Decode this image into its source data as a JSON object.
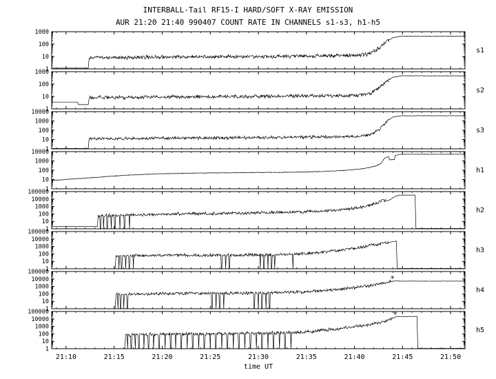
{
  "page": {
    "background": "#ffffff",
    "ink": "#000000"
  },
  "chart_data": {
    "type": "line",
    "title": "INTERBALL-Tail RF15-I HARD/SOFT X-RAY EMISSION",
    "subtitle": "AUR 21:20 21:40 990407  COUNT RATE IN CHANNELS s1-s3, h1-h5",
    "xlabel": "time UT",
    "x_range": [
      8.5,
      51.5
    ],
    "x_major_ticks": [
      10,
      15,
      20,
      25,
      30,
      35,
      40,
      45,
      50
    ],
    "x_tick_labels": [
      "21:10",
      "21:15",
      "21:20",
      "21:25",
      "21:30",
      "21:35",
      "21:40",
      "21:45",
      "21:50"
    ],
    "x_minor_step": 1,
    "grid": false,
    "legend": "none",
    "line_color": "#000000",
    "panels": [
      {
        "label": "s1",
        "ylim": [
          1,
          1000
        ],
        "y_tick_labels": [
          "1000",
          "100",
          "10",
          "1"
        ],
        "noise_dex": 0.18,
        "noise_start": 12.4,
        "noise_end": 43.6,
        "seed": 11,
        "keypoints": [
          [
            8.5,
            1.15
          ],
          [
            12.3,
            1.15
          ],
          [
            12.4,
            8
          ],
          [
            20,
            9
          ],
          [
            30,
            10
          ],
          [
            40,
            12
          ],
          [
            41.5,
            16
          ],
          [
            42.5,
            45
          ],
          [
            43.3,
            160
          ],
          [
            44.0,
            330
          ],
          [
            44.8,
            430
          ],
          [
            51.5,
            430
          ]
        ],
        "dropouts": []
      },
      {
        "label": "s2",
        "ylim": [
          1,
          1000
        ],
        "y_tick_labels": [
          "1000",
          "100",
          "10",
          "1"
        ],
        "noise_dex": 0.18,
        "noise_start": 12.4,
        "noise_end": 43.6,
        "seed": 22,
        "keypoints": [
          [
            8.5,
            3.5
          ],
          [
            11.2,
            3.5
          ],
          [
            11.3,
            2.2
          ],
          [
            12.3,
            2.2
          ],
          [
            12.4,
            8
          ],
          [
            20,
            9
          ],
          [
            30,
            10
          ],
          [
            40,
            12
          ],
          [
            41.5,
            16
          ],
          [
            42.5,
            45
          ],
          [
            43.3,
            160
          ],
          [
            44.0,
            350
          ],
          [
            44.8,
            460
          ],
          [
            51.5,
            460
          ]
        ],
        "dropouts": []
      },
      {
        "label": "s3",
        "ylim": [
          1,
          10000
        ],
        "y_tick_labels": [
          "10000",
          "1000",
          "100",
          "10",
          "1"
        ],
        "noise_dex": 0.2,
        "noise_start": 12.4,
        "noise_end": 43.6,
        "seed": 33,
        "keypoints": [
          [
            8.5,
            1.1
          ],
          [
            12.3,
            1.1
          ],
          [
            12.4,
            12
          ],
          [
            20,
            14
          ],
          [
            30,
            16
          ],
          [
            40,
            21
          ],
          [
            41.5,
            30
          ],
          [
            42.5,
            100
          ],
          [
            43.3,
            800
          ],
          [
            44.0,
            2600
          ],
          [
            44.8,
            3600
          ],
          [
            51.5,
            3600
          ]
        ],
        "dropouts": []
      },
      {
        "label": "h1",
        "ylim": [
          1,
          10000
        ],
        "y_tick_labels": [
          "10000",
          "1000",
          "100",
          "10",
          "1"
        ],
        "noise_dex": 0.045,
        "noise_start": 8.5,
        "noise_end": 42.6,
        "seed": 44,
        "keypoints": [
          [
            8.5,
            8
          ],
          [
            10,
            10
          ],
          [
            12,
            14
          ],
          [
            14,
            20
          ],
          [
            16,
            28
          ],
          [
            18,
            35
          ],
          [
            20,
            42
          ],
          [
            23,
            48
          ],
          [
            26,
            52
          ],
          [
            29,
            55
          ],
          [
            32,
            58
          ],
          [
            35,
            65
          ],
          [
            37,
            75
          ],
          [
            39,
            95
          ],
          [
            40.5,
            130
          ],
          [
            41.5,
            185
          ],
          [
            42.3,
            300
          ],
          [
            42.8,
            600
          ],
          [
            43.1,
            1800
          ],
          [
            43.4,
            2600
          ],
          [
            43.55,
            2900
          ],
          [
            43.65,
            1300
          ],
          [
            44.15,
            1400
          ],
          [
            44.25,
            3600
          ],
          [
            44.6,
            4800
          ],
          [
            45,
            5200
          ],
          [
            51.5,
            5200
          ]
        ],
        "dropouts": []
      },
      {
        "label": "h2",
        "ylim": [
          1,
          100000
        ],
        "y_tick_labels": [
          "100000",
          "10000",
          "1000",
          "100",
          "10",
          "1"
        ],
        "noise_dex": 0.25,
        "noise_start": 13.35,
        "noise_end": 43.2,
        "seed": 55,
        "keypoints": [
          [
            8.5,
            2
          ],
          [
            13.25,
            2
          ],
          [
            13.35,
            60
          ],
          [
            16,
            70
          ],
          [
            20,
            90
          ],
          [
            25,
            110
          ],
          [
            30,
            140
          ],
          [
            34,
            180
          ],
          [
            36,
            220
          ],
          [
            38,
            300
          ],
          [
            39.5,
            460
          ],
          [
            41,
            900
          ],
          [
            42,
            1900
          ],
          [
            42.6,
            4200
          ],
          [
            43,
            7500
          ],
          [
            43.4,
            5200
          ],
          [
            43.8,
            9500
          ],
          [
            44.2,
            21000
          ],
          [
            44.6,
            33000
          ],
          [
            46.3,
            34000
          ],
          [
            46.4,
            1.1
          ],
          [
            51.5,
            1.1
          ]
        ],
        "dropouts": [
          [
            13.6,
            0.1
          ],
          [
            13.9,
            0.08
          ],
          [
            14.3,
            0.1
          ],
          [
            14.7,
            0.08
          ],
          [
            15.1,
            0.1
          ],
          [
            15.6,
            0.08
          ],
          [
            16.1,
            0.1
          ],
          [
            16.6,
            0.08
          ]
        ]
      },
      {
        "label": "h3",
        "ylim": [
          1,
          100000
        ],
        "y_tick_labels": [
          "100000",
          "10000",
          "1000",
          "100",
          "10",
          "1"
        ],
        "noise_dex": 0.25,
        "noise_start": 15.2,
        "noise_end": 43.6,
        "seed": 66,
        "keypoints": [
          [
            15.1,
            1.1
          ],
          [
            15.2,
            55
          ],
          [
            18,
            62
          ],
          [
            21,
            66
          ],
          [
            24,
            62
          ],
          [
            27,
            66
          ],
          [
            30,
            74
          ],
          [
            33,
            88
          ],
          [
            35,
            115
          ],
          [
            37,
            190
          ],
          [
            38.5,
            320
          ],
          [
            40,
            560
          ],
          [
            41,
            920
          ],
          [
            42,
            1600
          ],
          [
            42.8,
            2300
          ],
          [
            43.5,
            3300
          ],
          [
            44.1,
            4600
          ],
          [
            44.35,
            5200
          ],
          [
            44.45,
            1.1
          ],
          [
            51.5,
            1.1
          ]
        ],
        "dropouts": [
          [
            15.5,
            0.08
          ],
          [
            15.8,
            0.1
          ],
          [
            16.2,
            0.08
          ],
          [
            16.6,
            0.1
          ],
          [
            17.0,
            0.08
          ],
          [
            26.2,
            0.1
          ],
          [
            26.6,
            0.08
          ],
          [
            27.0,
            0.1
          ],
          [
            30.2,
            0.08
          ],
          [
            30.6,
            0.1
          ],
          [
            31.0,
            0.08
          ],
          [
            31.4,
            0.1
          ],
          [
            31.7,
            0.08
          ],
          [
            33.6,
            0.08
          ]
        ]
      },
      {
        "label": "h4",
        "ylim": [
          1,
          100000
        ],
        "y_tick_labels": [
          "100000",
          "10000",
          "1000",
          "100",
          "10",
          "1"
        ],
        "noise_dex": 0.25,
        "noise_start": 15.2,
        "noise_end": 43.9,
        "seed": 77,
        "keypoints": [
          [
            15.1,
            1.1
          ],
          [
            15.2,
            90
          ],
          [
            18,
            100
          ],
          [
            21,
            110
          ],
          [
            24,
            115
          ],
          [
            27,
            120
          ],
          [
            30,
            130
          ],
          [
            33,
            152
          ],
          [
            35,
            185
          ],
          [
            37,
            265
          ],
          [
            38.5,
            390
          ],
          [
            40,
            620
          ],
          [
            41.2,
            1050
          ],
          [
            42.3,
            1900
          ],
          [
            43.2,
            3100
          ],
          [
            43.9,
            5000
          ],
          [
            44.3,
            5400
          ],
          [
            45,
            5100
          ],
          [
            51.5,
            5100
          ]
        ],
        "dropouts": [
          [
            15.4,
            0.08
          ],
          [
            15.7,
            0.1
          ],
          [
            16.0,
            0.08
          ],
          [
            16.4,
            0.1
          ],
          [
            25.2,
            0.1
          ],
          [
            25.6,
            0.08
          ],
          [
            26.0,
            0.1
          ],
          [
            26.4,
            0.08
          ],
          [
            29.6,
            0.1
          ],
          [
            30.0,
            0.08
          ],
          [
            30.4,
            0.1
          ],
          [
            30.8,
            0.08
          ],
          [
            31.2,
            0.1
          ]
        ],
        "marker": {
          "t": 43.95,
          "v": 9500,
          "symbol": "*"
        }
      },
      {
        "label": "h5",
        "ylim": [
          1,
          100000
        ],
        "y_tick_labels": [
          "100000",
          "10000",
          "1000",
          "100",
          "10",
          "1"
        ],
        "noise_dex": 0.27,
        "noise_start": 16.2,
        "noise_end": 43.9,
        "seed": 88,
        "keypoints": [
          [
            16.1,
            1.1
          ],
          [
            16.2,
            70
          ],
          [
            19,
            85
          ],
          [
            22,
            95
          ],
          [
            25,
            100
          ],
          [
            28,
            110
          ],
          [
            31,
            126
          ],
          [
            33,
            142
          ],
          [
            35,
            185
          ],
          [
            36.5,
            265
          ],
          [
            38,
            430
          ],
          [
            39.5,
            720
          ],
          [
            41,
            1350
          ],
          [
            42.3,
            2700
          ],
          [
            43.3,
            5600
          ],
          [
            44,
            12500
          ],
          [
            44.4,
            21000
          ],
          [
            46.5,
            21500
          ],
          [
            46.6,
            1.1
          ],
          [
            51.5,
            1.1
          ]
        ],
        "dropouts": [
          [
            16.4,
            0.08
          ],
          [
            16.8,
            0.1
          ],
          [
            17.2,
            0.08
          ],
          [
            17.6,
            0.1
          ],
          [
            18.1,
            0.08
          ],
          [
            18.6,
            0.1
          ],
          [
            19.1,
            0.08
          ],
          [
            19.7,
            0.1
          ],
          [
            20.3,
            0.08
          ],
          [
            20.9,
            0.1
          ],
          [
            21.4,
            0.08
          ],
          [
            22.0,
            0.1
          ],
          [
            22.6,
            0.08
          ],
          [
            23.2,
            0.1
          ],
          [
            23.8,
            0.08
          ],
          [
            24.4,
            0.1
          ],
          [
            25.0,
            0.08
          ],
          [
            25.6,
            0.1
          ],
          [
            26.2,
            0.08
          ],
          [
            26.8,
            0.1
          ],
          [
            27.4,
            0.08
          ],
          [
            28.0,
            0.1
          ],
          [
            28.6,
            0.08
          ],
          [
            29.2,
            0.1
          ],
          [
            29.8,
            0.08
          ],
          [
            30.4,
            0.1
          ],
          [
            31.0,
            0.08
          ],
          [
            31.6,
            0.1
          ],
          [
            32.2,
            0.08
          ],
          [
            32.8,
            0.1
          ],
          [
            33.4,
            0.08
          ]
        ],
        "marker": {
          "t": 44.25,
          "v": 33000,
          "symbol": "*"
        }
      }
    ]
  }
}
